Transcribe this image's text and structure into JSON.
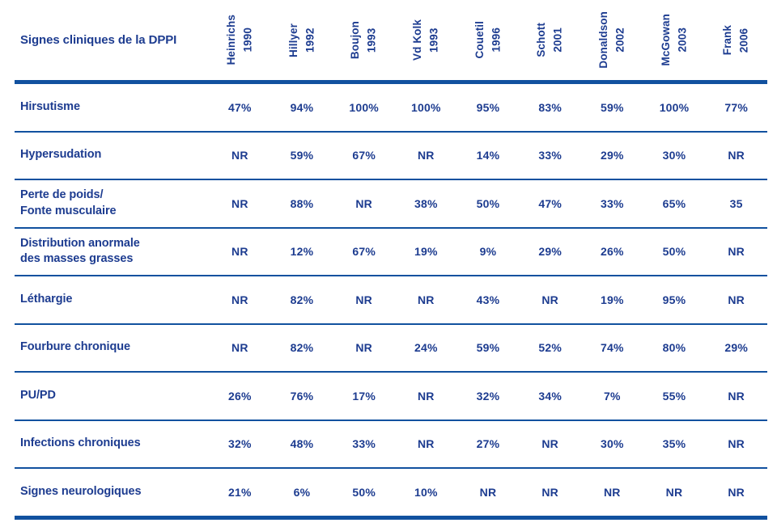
{
  "colors": {
    "rule_blue": "#11519f",
    "text_navy": "#1d3c90",
    "background": "#ffffff"
  },
  "table": {
    "title": "Signes cliniques de la DPPI",
    "not_reported_label": "NR",
    "columns": [
      {
        "name": "Heinrichs",
        "year": "1990"
      },
      {
        "name": "Hillyer",
        "year": "1992"
      },
      {
        "name": "Boujon",
        "year": "1993"
      },
      {
        "name": "Vd Kolk",
        "year": "1993"
      },
      {
        "name": "Couetil",
        "year": "1996"
      },
      {
        "name": "Schott",
        "year": "2001"
      },
      {
        "name": "Donaldson",
        "year": "2002"
      },
      {
        "name": "McGowan",
        "year": "2003"
      },
      {
        "name": "Frank",
        "year": "2006"
      }
    ],
    "rows": [
      {
        "label": "Hirsutisme",
        "values": [
          "47%",
          "94%",
          "100%",
          "100%",
          "95%",
          "83%",
          "59%",
          "100%",
          "77%"
        ]
      },
      {
        "label": "Hypersudation",
        "values": [
          "NR",
          "59%",
          "67%",
          "NR",
          "14%",
          "33%",
          "29%",
          "30%",
          "NR"
        ]
      },
      {
        "label": "Perte de poids/\nFonte musculaire",
        "values": [
          "NR",
          "88%",
          "NR",
          "38%",
          "50%",
          "47%",
          "33%",
          "65%",
          "35"
        ]
      },
      {
        "label": "Distribution anormale\ndes masses grasses",
        "values": [
          "NR",
          "12%",
          "67%",
          "19%",
          "9%",
          "29%",
          "26%",
          "50%",
          "NR"
        ]
      },
      {
        "label": "Léthargie",
        "values": [
          "NR",
          "82%",
          "NR",
          "NR",
          "43%",
          "NR",
          "19%",
          "95%",
          "NR"
        ]
      },
      {
        "label": "Fourbure chronique",
        "values": [
          "NR",
          "82%",
          "NR",
          "24%",
          "59%",
          "52%",
          "74%",
          "80%",
          "29%"
        ]
      },
      {
        "label": "PU/PD",
        "values": [
          "26%",
          "76%",
          "17%",
          "NR",
          "32%",
          "34%",
          "7%",
          "55%",
          "NR"
        ]
      },
      {
        "label": "Infections chroniques",
        "values": [
          "32%",
          "48%",
          "33%",
          "NR",
          "27%",
          "NR",
          "30%",
          "35%",
          "NR"
        ]
      },
      {
        "label": "Signes neurologiques",
        "values": [
          "21%",
          "6%",
          "50%",
          "10%",
          "NR",
          "NR",
          "NR",
          "NR",
          "NR"
        ]
      }
    ]
  }
}
